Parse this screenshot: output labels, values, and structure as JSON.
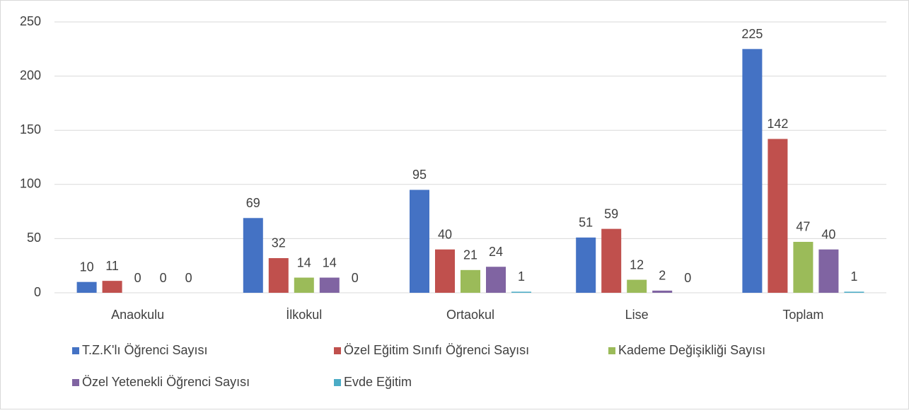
{
  "chart_data": {
    "type": "bar",
    "categories": [
      "Anaokulu",
      "İlkokul",
      "Ortaokul",
      "Lise",
      "Toplam"
    ],
    "series": [
      {
        "name": "T.Z.K'lı Öğrenci Sayısı",
        "color": "#4472c4",
        "values": [
          10,
          69,
          95,
          51,
          225
        ]
      },
      {
        "name": "Özel Eğitim Sınıfı Öğrenci Sayısı",
        "color": "#c0504d",
        "values": [
          11,
          32,
          40,
          59,
          142
        ]
      },
      {
        "name": "Kademe Değişikliği Sayısı",
        "color": "#9bbb59",
        "values": [
          0,
          14,
          21,
          12,
          47
        ]
      },
      {
        "name": "Özel Yetenekli Öğrenci Sayısı",
        "color": "#8064a2",
        "values": [
          0,
          14,
          24,
          2,
          40
        ]
      },
      {
        "name": "Evde Eğitim",
        "color": "#4bacc6",
        "values": [
          0,
          0,
          1,
          0,
          1
        ]
      }
    ],
    "ylim": [
      0,
      250
    ],
    "yticks": [
      0,
      50,
      100,
      150,
      200,
      250
    ],
    "grid": true,
    "legend": "bottom"
  }
}
